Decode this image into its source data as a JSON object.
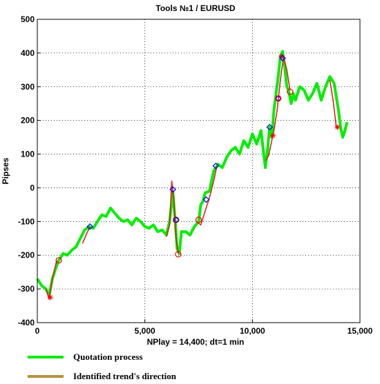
{
  "chart_data": {
    "type": "line",
    "title": "Tools  №1 / EURUSD",
    "xlabel": "NPlay = 14,400;  dt=1 min",
    "ylabel": "Pipses",
    "xlim": [
      0,
      15000
    ],
    "ylim": [
      -400,
      500
    ],
    "x_ticks": [
      0,
      5000,
      10000,
      15000
    ],
    "x_tick_labels": [
      "0",
      "5,000",
      "10,000",
      "15,000"
    ],
    "y_ticks": [
      -400,
      -300,
      -200,
      -100,
      0,
      100,
      200,
      300,
      400,
      500
    ],
    "y_tick_labels": [
      "-400",
      "-300",
      "-200",
      "-100",
      "0",
      "100",
      "200",
      "300",
      "400",
      "500"
    ],
    "grid": true,
    "legend": "bottom-left",
    "series": [
      {
        "name": "Quotation process",
        "color": "#00ee00",
        "x": [
          0,
          200,
          400,
          550,
          700,
          850,
          1000,
          1200,
          1400,
          1600,
          1800,
          2000,
          2200,
          2400,
          2600,
          2800,
          3000,
          3200,
          3400,
          3600,
          3800,
          4000,
          4200,
          4400,
          4600,
          4800,
          5000,
          5200,
          5400,
          5600,
          5800,
          6000,
          6150,
          6300,
          6400,
          6500,
          6600,
          6700,
          6900,
          7100,
          7300,
          7500,
          7600,
          7700,
          7800,
          8000,
          8200,
          8400,
          8600,
          8800,
          9000,
          9200,
          9400,
          9600,
          9800,
          10000,
          10200,
          10400,
          10600,
          10700,
          10800,
          10900,
          11000,
          11100,
          11200,
          11300,
          11400,
          11500,
          11600,
          11700,
          11800,
          11900,
          12000,
          12200,
          12400,
          12600,
          12800,
          13000,
          13200,
          13400,
          13600,
          13800,
          13900,
          14000,
          14100,
          14200,
          14300,
          14400
        ],
        "y": [
          -270,
          -290,
          -300,
          -320,
          -270,
          -240,
          -215,
          -195,
          -200,
          -185,
          -175,
          -150,
          -125,
          -115,
          -120,
          -100,
          -80,
          -85,
          -60,
          -75,
          -90,
          -100,
          -95,
          -110,
          -90,
          -100,
          -115,
          -120,
          -110,
          -130,
          -125,
          -140,
          -100,
          -10,
          -90,
          -180,
          -195,
          -130,
          -130,
          -140,
          -115,
          -100,
          -50,
          -40,
          -15,
          -10,
          50,
          70,
          60,
          90,
          110,
          120,
          100,
          140,
          120,
          160,
          130,
          170,
          60,
          110,
          180,
          150,
          230,
          280,
          330,
          390,
          405,
          360,
          300,
          285,
          250,
          280,
          260,
          300,
          290,
          260,
          280,
          310,
          260,
          300,
          330,
          310,
          270,
          230,
          180,
          150,
          170,
          195
        ]
      },
      {
        "name": "Identified trend's direction",
        "color": "#b8913a",
        "segments": [
          {
            "x": [
              400,
              550,
              700,
              900
            ],
            "y": [
              -300,
              -330,
              -270,
              -215
            ]
          },
          {
            "x": [
              2100,
              2300,
              2450
            ],
            "y": [
              -165,
              -135,
              -115
            ]
          },
          {
            "x": [
              6000,
              6150,
              6250,
              6350,
              6450,
              6550
            ],
            "y": [
              -145,
              -110,
              20,
              -40,
              -150,
              -195
            ]
          },
          {
            "x": [
              7400,
              7600,
              7800,
              8000,
              8200,
              8350
            ],
            "y": [
              -100,
              -110,
              -70,
              -30,
              20,
              65
            ]
          },
          {
            "x": [
              10600,
              10750,
              10900,
              11000,
              11150,
              11300,
              11450,
              11600,
              11750
            ],
            "y": [
              80,
              95,
              140,
              170,
              230,
              320,
              390,
              350,
              290
            ]
          },
          {
            "x": [
              13600,
              13750,
              13900
            ],
            "y": [
              320,
              260,
              180
            ]
          }
        ]
      }
    ],
    "markers": [
      {
        "type": "star",
        "color": "#ff0000",
        "x": 600,
        "y": -325
      },
      {
        "type": "circle",
        "color": "#ff0000",
        "x": 1000,
        "y": -215
      },
      {
        "type": "diamond",
        "color": "#0000ff",
        "x": 2450,
        "y": -115
      },
      {
        "type": "diamond",
        "color": "#0000ff",
        "x": 6300,
        "y": -5
      },
      {
        "type": "circle",
        "color": "#ff0000",
        "x": 6450,
        "y": -95
      },
      {
        "type": "diamond",
        "color": "#0000ff",
        "x": 6450,
        "y": -95
      },
      {
        "type": "circle",
        "color": "#ff0000",
        "x": 6550,
        "y": -197
      },
      {
        "type": "circle",
        "color": "#ff0000",
        "x": 7500,
        "y": -95
      },
      {
        "type": "diamond",
        "color": "#0000ff",
        "x": 7850,
        "y": -35
      },
      {
        "type": "diamond",
        "color": "#0000ff",
        "x": 8300,
        "y": 65
      },
      {
        "type": "diamond",
        "color": "#0000ff",
        "x": 10800,
        "y": 180
      },
      {
        "type": "star",
        "color": "#ff0000",
        "x": 10950,
        "y": 155
      },
      {
        "type": "diamond",
        "color": "#0000ff",
        "x": 11200,
        "y": 265
      },
      {
        "type": "circle",
        "color": "#ff0000",
        "x": 11200,
        "y": 265
      },
      {
        "type": "star",
        "color": "#ff0000",
        "x": 11350,
        "y": 390
      },
      {
        "type": "diamond",
        "color": "#0000ff",
        "x": 11400,
        "y": 385
      },
      {
        "type": "circle",
        "color": "#ff0000",
        "x": 11750,
        "y": 285
      },
      {
        "type": "star",
        "color": "#ff0000",
        "x": 13950,
        "y": 180
      }
    ]
  }
}
